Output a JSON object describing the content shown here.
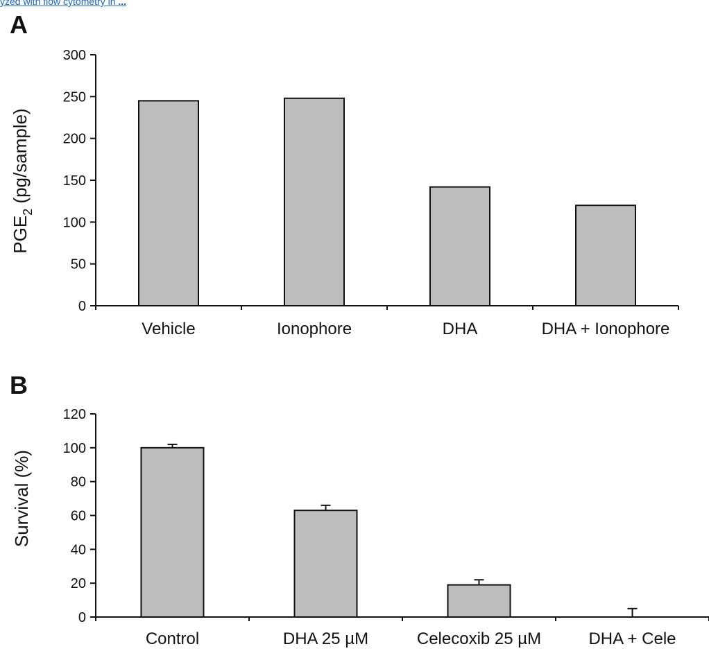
{
  "caption_link": {
    "text": "yzed with flow cytometry in",
    "ellipsis": "..."
  },
  "chart_data": [
    {
      "type": "bar",
      "panel_label": "A",
      "categories": [
        "Vehicle",
        "Ionophore",
        "DHA",
        "DHA + Ionophore"
      ],
      "values": [
        245,
        248,
        142,
        120
      ],
      "ylabel_main": "PGE",
      "ylabel_sub": "2",
      "ylabel_rest": " (pg/sample)",
      "ylim": [
        0,
        300
      ],
      "yticks": [
        0,
        50,
        100,
        150,
        200,
        250,
        300
      ],
      "xlabel": "",
      "grid": false,
      "bar_color": "#bdbdbd"
    },
    {
      "type": "bar",
      "panel_label": "B",
      "categories": [
        "Control",
        "DHA 25 µM",
        "Celecoxib 25 µM",
        "DHA + Cele"
      ],
      "values": [
        100,
        63,
        19,
        0
      ],
      "errors": [
        2,
        3,
        3,
        5
      ],
      "ylabel": "Survival (%)",
      "ylim": [
        0,
        120
      ],
      "yticks": [
        0,
        20,
        40,
        60,
        80,
        100,
        120
      ],
      "xlabel": "",
      "grid": false,
      "bar_color": "#bdbdbd"
    }
  ]
}
